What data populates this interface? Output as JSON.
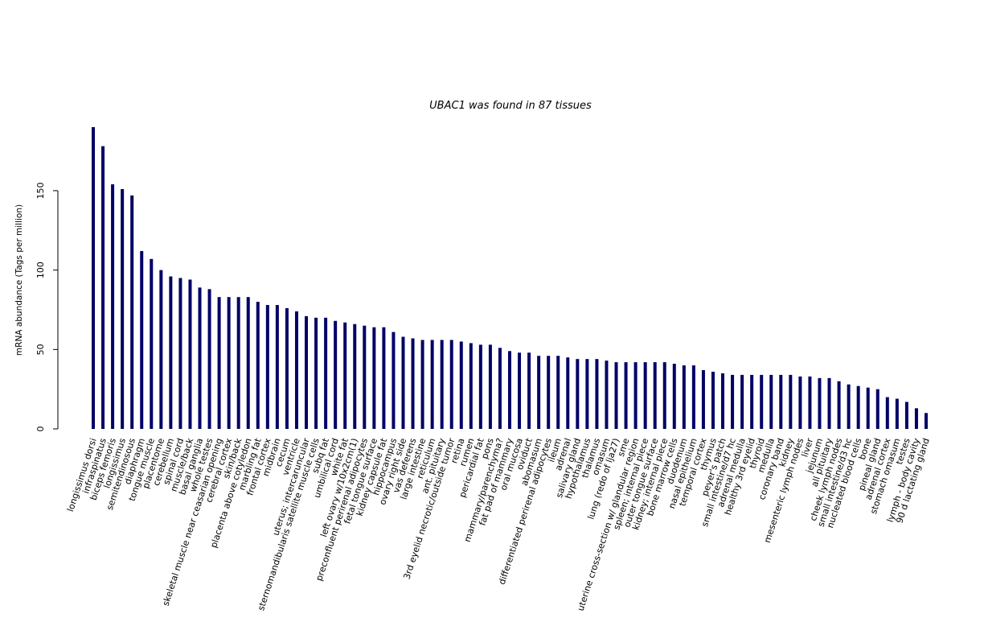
{
  "chart_data": {
    "type": "bar",
    "title": "UBAC1  was found in  87  tissues",
    "xlabel": "",
    "ylabel": "mRNA abundance (Tags per million)",
    "ylim": [
      0,
      190
    ],
    "yticks": [
      0,
      50,
      100,
      150
    ],
    "bar_color": "#000066",
    "grid": false,
    "categories": [
      "longissimus dorsi",
      "infraspinatus",
      "biceps femoris",
      "longissimus",
      "semitendinosous",
      "diaphragm",
      "tongue muscle",
      "placentome",
      "cerebellum",
      "spinal cord",
      "muscle/back",
      "basal ganglia",
      "whole testes",
      "skeletal muscle near ceasarian opening",
      "cerebral cortex",
      "skin/back",
      "placenta above cotyledon",
      "marbling fat",
      "frontal cortex",
      "midbrain",
      "cecum",
      "ventricle",
      "uterus; intercaruncular",
      "sternomandibularis satellite muscle cells",
      "subq fat",
      "umbilical cord",
      "white fat",
      "left ovary w/10x2cm(1)",
      "preconfluent perirenal adipocytes",
      "fetal tongue surface",
      "kidney capsule fat",
      "hippocampus",
      "ovary right side",
      "vas deferens",
      "large intestine",
      "reticulum",
      "ant. pituitary",
      "3rd eyelid necrotic/outside tumor",
      "retina",
      "rumen",
      "pericardial fat",
      "pons",
      "mammary/parenchyma?",
      "fat pad of mammary",
      "oral mucosa",
      "oviduct",
      "abomasum",
      "differentiated perirenal adipocytes",
      "ileum",
      "adrenal",
      "salivary gland",
      "hypothalamus",
      "thalamus",
      "omasum",
      "lung (redo of lja27)",
      "sme",
      "uterine cross-section w/ glandular region",
      "spleen; internal piece",
      "outer tongue surface",
      "kidney; internal piece",
      "bone marrow cells",
      "duodenum",
      "nasal epithelium",
      "temporal cortex",
      "thymus",
      "peyer's patch",
      "small intestine/d7 hc",
      "adrenal medulla",
      "healthy 3rd eyelid",
      "thyroid",
      "medulla",
      "coronary band",
      "kidney",
      "mesenteric lymph nodes",
      "liver",
      "jejunum",
      "all pituitary",
      "cheek lymph nodes",
      "small intestine/d3 hc",
      "nucleated blood cells",
      "bone",
      "pineal gland",
      "adrenal cortex",
      "stomach omasum",
      "testes",
      "lymph - body cavity",
      "90 d lactating gland"
    ],
    "values": [
      190,
      178,
      154,
      151,
      147,
      112,
      107,
      100,
      96,
      95,
      94,
      89,
      88,
      83,
      83,
      83,
      83,
      80,
      78,
      78,
      76,
      74,
      71,
      70,
      70,
      68,
      67,
      66,
      65,
      64,
      64,
      61,
      58,
      57,
      56,
      56,
      56,
      56,
      55,
      54,
      53,
      53,
      51,
      49,
      48,
      48,
      46,
      46,
      46,
      45,
      44,
      44,
      44,
      43,
      42,
      42,
      42,
      42,
      42,
      42,
      41,
      40,
      40,
      37,
      36,
      35,
      34,
      34,
      34,
      34,
      34,
      34,
      34,
      33,
      33,
      32,
      32,
      30,
      28,
      27,
      26,
      25,
      20,
      19,
      17,
      13,
      10
    ]
  }
}
